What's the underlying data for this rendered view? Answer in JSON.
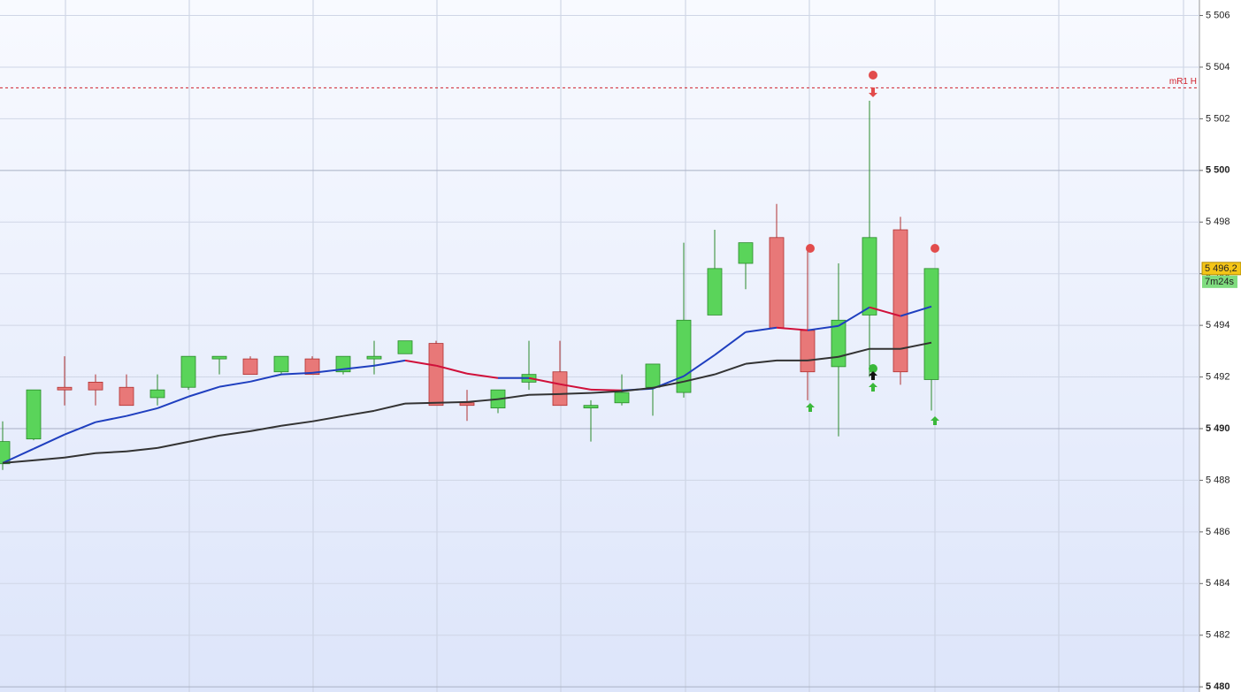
{
  "chart_data": {
    "type": "candlestick",
    "open": [
      5488.64,
      5489.6,
      5491.6,
      5491.8,
      5491.6,
      5491.2,
      5491.6,
      5492.7,
      5492.7,
      5492.2,
      5492.7,
      5492.2,
      5492.7,
      5492.9,
      5493.3,
      5491.0,
      5490.8,
      5491.8,
      5492.2,
      5490.8,
      5491.0,
      5491.6,
      5491.4,
      5494.4,
      5496.4,
      5497.4,
      5493.8,
      5492.4,
      5494.4,
      5497.7,
      5491.9
    ],
    "high": [
      5490.28,
      5491.5,
      5492.8,
      5492.1,
      5492.1,
      5492.1,
      5492.8,
      5492.8,
      5492.8,
      5492.8,
      5492.8,
      5492.8,
      5493.4,
      5493.4,
      5493.4,
      5491.5,
      5491.5,
      5493.4,
      5493.4,
      5491.1,
      5492.1,
      5492.5,
      5497.2,
      5497.7,
      5497.2,
      5498.7,
      5496.9,
      5496.4,
      5502.7,
      5498.2,
      5496.2
    ],
    "low": [
      5488.4,
      5489.55,
      5490.9,
      5490.9,
      5490.9,
      5490.9,
      5491.5,
      5492.1,
      5492.1,
      5492.1,
      5492.1,
      5492.1,
      5492.1,
      5492.9,
      5490.9,
      5490.3,
      5490.6,
      5491.5,
      5490.9,
      5489.5,
      5490.9,
      5490.5,
      5491.2,
      5494.4,
      5495.4,
      5493.9,
      5491.1,
      5489.7,
      5492.0,
      5491.7,
      5490.7
    ],
    "close": [
      5489.5,
      5491.5,
      5491.5,
      5491.5,
      5490.9,
      5491.5,
      5492.8,
      5492.8,
      5492.1,
      5492.8,
      5492.1,
      5492.8,
      5492.8,
      5493.4,
      5490.9,
      5490.9,
      5491.5,
      5492.1,
      5490.9,
      5490.9,
      5491.4,
      5492.5,
      5494.2,
      5496.2,
      5497.2,
      5493.9,
      5492.2,
      5494.2,
      5497.4,
      5492.2,
      5496.2
    ],
    "up_color": "#5ad45a",
    "down_color": "#e87878",
    "lines": [
      {
        "color": "#1f3fbf",
        "down_color": "#d0103a",
        "values": [
          5488.67,
          5489.22,
          5489.77,
          5490.25,
          5490.49,
          5490.79,
          5491.24,
          5491.62,
          5491.82,
          5492.1,
          5492.16,
          5492.3,
          5492.44,
          5492.64,
          5492.44,
          5492.13,
          5491.96,
          5491.96,
          5491.72,
          5491.51,
          5491.48,
          5491.55,
          5492.03,
          5492.85,
          5493.74,
          5493.91,
          5493.81,
          5493.98,
          5494.7,
          5494.36,
          5494.73
        ]
      },
      {
        "color": "#333333",
        "down_color": "#333333",
        "values": [
          5488.67,
          5488.77,
          5488.88,
          5489.05,
          5489.12,
          5489.25,
          5489.49,
          5489.73,
          5489.9,
          5490.11,
          5490.28,
          5490.49,
          5490.69,
          5490.97,
          5491.0,
          5491.03,
          5491.14,
          5491.31,
          5491.34,
          5491.38,
          5491.45,
          5491.58,
          5491.82,
          5492.1,
          5492.51,
          5492.64,
          5492.64,
          5492.78,
          5493.09,
          5493.09,
          5493.33
        ]
      }
    ],
    "level": {
      "name": "mR1 H",
      "value": 5503.2,
      "color": "#d0202a"
    },
    "last_price": {
      "value": 5496.2,
      "label": "5 496,2"
    },
    "timer": "7m24s",
    "ylim": [
      5479.8,
      5506.6
    ],
    "yticks": [
      {
        "value": 5480,
        "label": "5 480"
      },
      {
        "value": 5482,
        "label": "5 482"
      },
      {
        "value": 5484,
        "label": "5 484"
      },
      {
        "value": 5486,
        "label": "5 486"
      },
      {
        "value": 5488,
        "label": "5 488"
      },
      {
        "value": 5490,
        "label": "5 490"
      },
      {
        "value": 5492,
        "label": "5 492"
      },
      {
        "value": 5494,
        "label": "5 494"
      },
      {
        "value": 5496,
        "label": "5 496"
      },
      {
        "value": 5498,
        "label": "5 498"
      },
      {
        "value": 5500,
        "label": "5 500"
      },
      {
        "value": 5502,
        "label": "5 502"
      },
      {
        "value": 5504,
        "label": "5 504"
      },
      {
        "value": 5506,
        "label": "5 506"
      }
    ],
    "grid": true
  }
}
